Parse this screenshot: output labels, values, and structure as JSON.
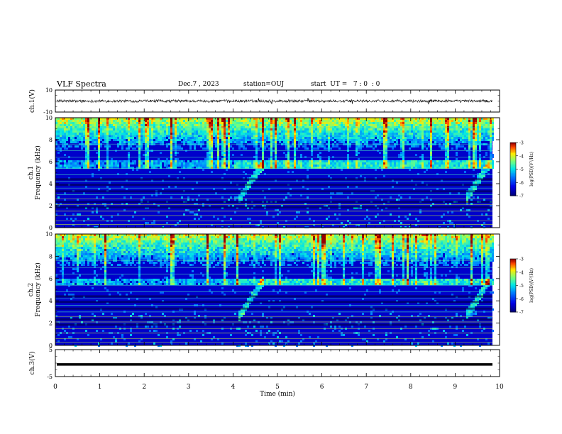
{
  "header": {
    "title": "VLF Spectra",
    "date": "Dec.7 , 2023",
    "station": "station=OUJ",
    "start": "start  UT =   7 : 0  : 0"
  },
  "chart_data": [
    {
      "type": "line",
      "name": "ch.1 waveform",
      "ylabel": "ch.1(V)",
      "ylim": [
        -10,
        10
      ],
      "yticks": [
        "10",
        "-10"
      ],
      "note": "noisy waveform centred near 0 V, amplitude about +/-2 V with occasional spikes"
    },
    {
      "type": "heatmap",
      "name": "ch.1 spectrogram",
      "ylabel": "ch.1  Frequency (kHz)",
      "ylim": [
        0,
        10
      ],
      "yticks": [
        "0",
        "2",
        "4",
        "6",
        "8",
        "10"
      ],
      "xlim": [
        0,
        10
      ],
      "colorbar": {
        "label": "log(PSD)(V²/Hz)",
        "range": [
          -7,
          -3
        ],
        "ticks": [
          "-3",
          "-4",
          "-5",
          "-6",
          "-7"
        ]
      },
      "features": {
        "emission_band_khz": 5.8,
        "hiss_top_khz": 10,
        "rising_tone_min": [
          4.2,
          9.3
        ]
      }
    },
    {
      "type": "heatmap",
      "name": "ch.2 spectrogram",
      "ylabel": "ch.2  Frequency (kHz)",
      "ylim": [
        0,
        10
      ],
      "yticks": [
        "0",
        "2",
        "4",
        "6",
        "8",
        "10"
      ],
      "xlim": [
        0,
        10
      ],
      "colorbar": {
        "label": "log(PSD)(V²/Hz)",
        "range": [
          -7,
          -3
        ],
        "ticks": [
          "-3",
          "-4",
          "-5",
          "-6",
          "-7"
        ]
      },
      "features": {
        "emission_band_khz": 5.8,
        "hiss_top_khz": 10,
        "rising_tone_min": [
          4.2,
          9.3
        ]
      }
    },
    {
      "type": "line",
      "name": "ch.3 waveform",
      "ylabel": "ch.3(V)",
      "ylim": [
        -5,
        5
      ],
      "yticks": [
        "5",
        "-5"
      ],
      "constant_value": -0.5
    }
  ],
  "x_axis": {
    "label": "Time (min)",
    "range": [
      0,
      10
    ],
    "ticks": [
      "0",
      "1",
      "2",
      "3",
      "4",
      "5",
      "6",
      "7",
      "8",
      "9",
      "10"
    ]
  }
}
